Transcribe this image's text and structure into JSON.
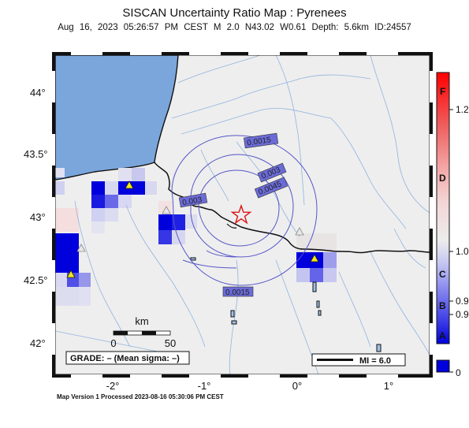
{
  "title": "SISCAN Uncertainty Ratio Map : Pyrenees",
  "subtitle": "Aug 16, 2023 05:26:57 PM CEST   M 2.0   N43.02 W0.61   Depth: 5.6km   ID:24557",
  "footer": "Map Version 1 Processed 2023-08-16 05:30:06 PM CEST",
  "lat_ticks": [
    "44°",
    "43.5°",
    "43°",
    "42.5°",
    "42°"
  ],
  "lon_ticks": [
    "-2°",
    "-1°",
    "0°",
    "1°"
  ],
  "scalebar": {
    "unit": "km",
    "left": "0",
    "right": "50"
  },
  "grade_text": "GRADE: – (Mean sigma: –)",
  "mi_text": "MI = 6.0",
  "contours": [
    "0.0015",
    "0.003",
    "0.0045",
    "0.003",
    "0.0015"
  ],
  "colorbar": {
    "letters": [
      "F",
      "D",
      "C",
      "B",
      "A"
    ],
    "values": [
      "1.2",
      "1.0",
      "0.9",
      "0.9",
      "0"
    ]
  },
  "colors": {
    "ocean": "#7aa6dc",
    "land": "#eeeeee",
    "blue": "#0000dd",
    "red": "#ff0000",
    "epicenter": "#dd1111"
  },
  "symbols": {
    "epicenter": "red-star-icon",
    "station": "yellow-triangle-icon",
    "other_station": "grey-triangle-icon"
  }
}
